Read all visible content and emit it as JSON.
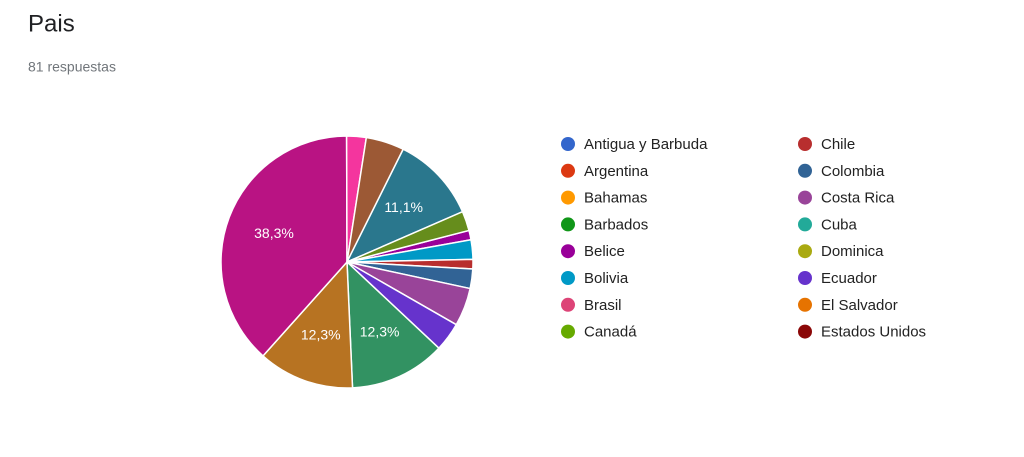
{
  "chart_data": {
    "type": "pie",
    "title": "Pais",
    "subtitle": "81 respuestas",
    "categories": [
      "Antigua y Barbuda",
      "Argentina",
      "Bahamas",
      "Barbados",
      "Belice",
      "Bolivia",
      "Brasil",
      "Canadá",
      "Chile",
      "Colombia",
      "Costa Rica",
      "Cuba",
      "Dominica",
      "Ecuador",
      "El Salvador",
      "Estados Unidos",
      null,
      null,
      null,
      null,
      null,
      null,
      null
    ],
    "values": [
      0,
      0,
      0,
      0,
      1.2,
      2.5,
      0,
      0,
      1.2,
      2.5,
      4.9,
      0,
      0,
      3.7,
      0,
      0,
      12.3,
      12.3,
      38.3,
      2.5,
      4.9,
      11.1,
      2.5
    ],
    "value_labels": [
      null,
      null,
      null,
      null,
      null,
      null,
      null,
      null,
      null,
      null,
      null,
      null,
      null,
      null,
      null,
      null,
      "12,3%",
      "12,3%",
      "38,3%",
      null,
      null,
      "11,1%",
      null
    ],
    "colors": [
      "#3366cc",
      "#dc3912",
      "#ff9900",
      "#109618",
      "#990099",
      "#0099c6",
      "#dd4477",
      "#66aa00",
      "#b82e2e",
      "#316395",
      "#994499",
      "#22aa99",
      "#aaaa11",
      "#6633cc",
      "#e67300",
      "#8b0707",
      "#329262",
      "#b77322",
      "#b91383",
      "#f4359e",
      "#9c5935",
      "#2a778d",
      "#668d1c"
    ]
  }
}
